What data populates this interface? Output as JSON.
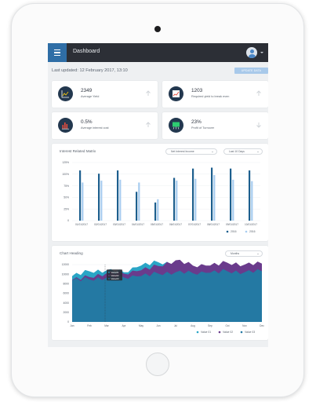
{
  "header": {
    "title": "Dashboard"
  },
  "toolbar": {
    "last_updated": "Last updated: 12 February 2017, 13:10",
    "update_label": "UPDATE DATA"
  },
  "stats": [
    {
      "value": "2349",
      "label": "Average Yield",
      "icon": "yield-chart-icon",
      "trend": "up"
    },
    {
      "value": "1203",
      "label": "Required yield to break even",
      "icon": "trend-chart-icon",
      "trend": "up"
    },
    {
      "value": "0.5%",
      "label": "Average interest cost",
      "icon": "bar-chart-icon",
      "trend": "up"
    },
    {
      "value": "23%",
      "label": "Profit of Turnover",
      "icon": "presentation-icon",
      "trend": "down"
    }
  ],
  "colors": {
    "accent": "#2f6ea6",
    "series_dark": "#1d5f8e",
    "series_light": "#a8cdf0",
    "value01": "#2aa5c6",
    "value02": "#6a3b8c",
    "value03": "#2479a3"
  },
  "interest_matrix": {
    "title": "Interest Related Matrix",
    "filter_label": "Net Interest Income",
    "range_label": "Last 10 Days"
  },
  "area_panel": {
    "title": "Chart Heading",
    "range_label": "Months"
  },
  "chart_data": [
    {
      "type": "bar",
      "title": "Interest Related Matrix",
      "categories": [
        "01/01/2017",
        "02/01/2017",
        "03/01/2017",
        "04/01/2017",
        "05/01/2017",
        "06/01/2017",
        "07/01/2017",
        "08/01/2017",
        "09/01/2017",
        "10/01/2017"
      ],
      "series": [
        {
          "name": "2016",
          "values": [
            108,
            101,
            108,
            62,
            39,
            92,
            112,
            114,
            112,
            108
          ]
        },
        {
          "name": "2016",
          "values": [
            82,
            86,
            88,
            82,
            46,
            86,
            90,
            98,
            88,
            85
          ]
        }
      ],
      "ylim": [
        0,
        125
      ],
      "yticks": [
        "0",
        "25%",
        "50%",
        "75%",
        "100%",
        "125%"
      ],
      "grid": true,
      "legend": "bottom-right"
    },
    {
      "type": "area",
      "title": "Chart Heading",
      "categories": [
        "Jan",
        "Feb",
        "Mar",
        "Apr",
        "May",
        "Jun",
        "Jul",
        "Aug",
        "Sep",
        "Oct",
        "Nov",
        "Dec"
      ],
      "series": [
        {
          "name": "Value 01",
          "values": [
            9600,
            10600,
            10800,
            10400,
            11800,
            12500,
            12200,
            11300,
            11500,
            12000,
            11500,
            11800
          ]
        },
        {
          "name": "Value 02",
          "values": [
            8800,
            9400,
            10200,
            10100,
            10800,
            11700,
            12900,
            11800,
            11800,
            12400,
            12000,
            12200
          ]
        },
        {
          "name": "Value 03",
          "values": [
            8700,
            8900,
            9300,
            9300,
            9600,
            10100,
            10400,
            10200,
            10300,
            10600,
            10400,
            10600
          ]
        }
      ],
      "ylim": [
        0,
        12000
      ],
      "yticks": [
        "0",
        "2000",
        "4000",
        "6000",
        "8000",
        "10000",
        "12000"
      ],
      "grid": true,
      "legend": "bottom-right",
      "tooltip": [
        "Value01",
        "Value02",
        "Value03"
      ]
    }
  ]
}
